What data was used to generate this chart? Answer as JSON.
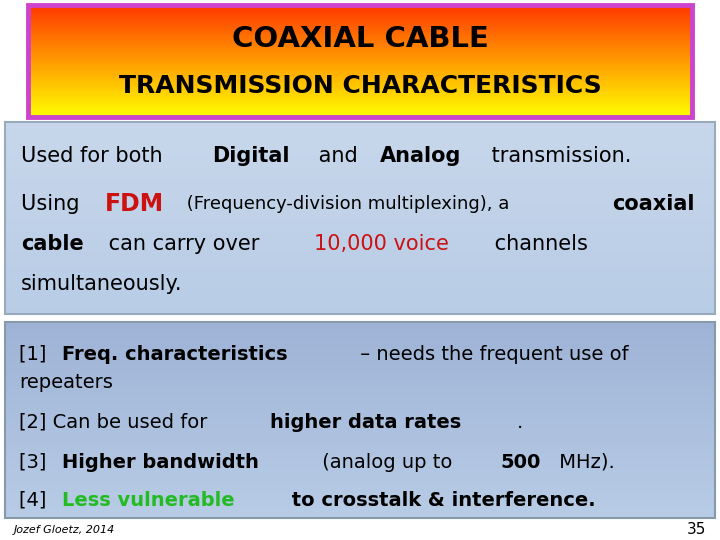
{
  "title_line1": "COAXIAL CABLE",
  "title_line2": "TRANSMISSION CHARACTERISTICS",
  "title_color": "#000000",
  "title_border_color": "#CC44CC",
  "box1_bg_top": "#B8CADF",
  "box1_bg_bottom": "#9FB8D8",
  "box2_bg_top": "#8899CC",
  "box2_bg_bottom": "#9AAFD4",
  "footer_text": "Jozef Gloetz, 2014",
  "page_num": "35",
  "slide_bg": "#FFFFFF",
  "green_color": "#22BB22",
  "red_color": "#CC1111",
  "black_color": "#000000"
}
